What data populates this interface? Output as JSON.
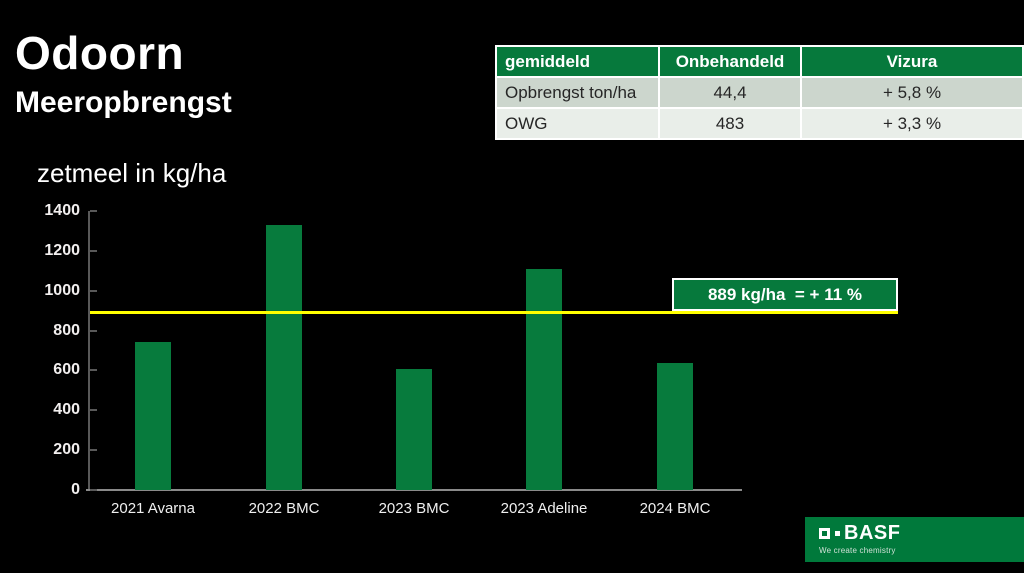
{
  "slide": {
    "title": "Odoorn",
    "subtitle": "Meeropbrengst"
  },
  "summary_table": {
    "header": [
      "gemiddeld",
      "Onbehandeld",
      "Vizura"
    ],
    "rows": [
      [
        "Opbrengst ton/ha",
        "44,4",
        "+ 5,8 %"
      ],
      [
        "OWG",
        "483",
        "+ 3,3 %"
      ]
    ]
  },
  "chart_data": {
    "type": "bar",
    "title": "zetmeel in kg/ha",
    "categories": [
      "2021 Avarna",
      "2022 BMC",
      "2023 BMC",
      "2023 Adeline",
      "2024 BMC"
    ],
    "values": [
      745,
      1330,
      605,
      1110,
      635
    ],
    "xlabel": "",
    "ylabel": "",
    "ylim": [
      0,
      1400
    ],
    "ytick_step": 200,
    "grid": false,
    "legend": false,
    "bar_color": "#077b3d",
    "reference_line": {
      "value": 889,
      "label": "889 kg/ha  = + 11 %",
      "color": "#ffff00"
    }
  },
  "footer": {
    "brand": "BASF",
    "tagline": "We create chemistry"
  },
  "colors": {
    "background": "#000000",
    "table_header_green": "#06793c",
    "table_row1_bg": "#ccd6cd",
    "table_row2_bg": "#e9eee9",
    "bar_green": "#077b3d",
    "reference_yellow": "#ffff00",
    "footer_green": "#00793b",
    "axis_gray": "#595959"
  }
}
